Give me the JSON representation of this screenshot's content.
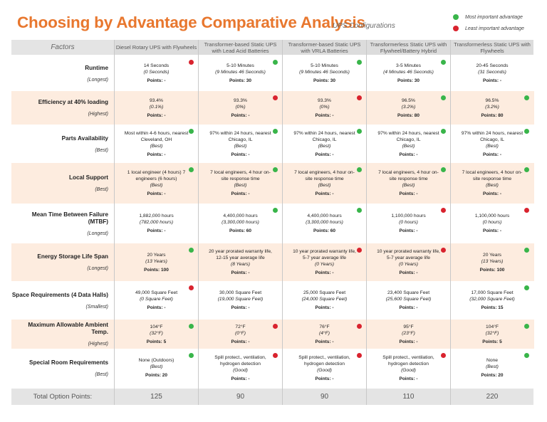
{
  "title": "Choosing by Advantage Comparative Analysis",
  "subtitle": "UPS Configurations",
  "legend": {
    "most": "Most important advantage",
    "least": "Least important advantage",
    "most_color": "#39b54a",
    "least_color": "#d9232e"
  },
  "factors_header": "Factors",
  "options": [
    "Diesel Rotary UPS with Flywheels",
    "Transformer-based Static UPS with Lead Acid Batteries",
    "Transformer-based Static UPS with VRLA Batteries",
    "Transformerless Static UPS with Flywheel/Battery Hybrid",
    "Transformerless Static UPS with Flywheels"
  ],
  "rows": [
    {
      "factor": "Runtime",
      "pref": "(Longest)",
      "cells": [
        {
          "value": "14 Seconds",
          "eq": "(0 Seconds)",
          "pts": "Points: -",
          "mark": "red"
        },
        {
          "value": "5-10 Minutes",
          "eq": "(9 Minutes 46 Seconds)",
          "pts": "Points: 30",
          "mark": "green"
        },
        {
          "value": "5-10 Minutes",
          "eq": "(9 Minutes 46 Seconds)",
          "pts": "Points: 30",
          "mark": "green"
        },
        {
          "value": "3-5 Minutes",
          "eq": "(4 Minutes 46 Seconds)",
          "pts": "Points: 30",
          "mark": "green"
        },
        {
          "value": "20-45 Seconds",
          "eq": "(31 Seconds)",
          "pts": "Points: -",
          "mark": ""
        }
      ]
    },
    {
      "factor": "Efficiency at 40% loading",
      "pref": "(Highest)",
      "cells": [
        {
          "value": "93.4%",
          "eq": "(0.1%)",
          "pts": "Points: -",
          "mark": ""
        },
        {
          "value": "93.3%",
          "eq": "(0%)",
          "pts": "Points: -",
          "mark": "red"
        },
        {
          "value": "93.3%",
          "eq": "(0%)",
          "pts": "Points: -",
          "mark": "red"
        },
        {
          "value": "96.5%",
          "eq": "(3.2%)",
          "pts": "Points: 80",
          "mark": "green"
        },
        {
          "value": "96.5%",
          "eq": "(3.2%)",
          "pts": "Points: 80",
          "mark": "green"
        }
      ]
    },
    {
      "factor": "Parts Availability",
      "pref": "(Best)",
      "cells": [
        {
          "value": "Most within 4-6 hours, nearest Cleveland, OH",
          "eq": "(Best)",
          "pts": "Points: -",
          "mark": "green"
        },
        {
          "value": "97% within 24 hours, nearest Chicago, IL",
          "eq": "(Best)",
          "pts": "Points: -",
          "mark": "green"
        },
        {
          "value": "97% within 24 hours, nearest Chicago, IL",
          "eq": "(Best)",
          "pts": "Points: -",
          "mark": "green"
        },
        {
          "value": "97% within 24 hours, nearest Chicago, IL",
          "eq": "(Best)",
          "pts": "Points: -",
          "mark": "green"
        },
        {
          "value": "97% within 24 hours, nearest Chicago, IL",
          "eq": "(Best)",
          "pts": "Points: -",
          "mark": "green"
        }
      ]
    },
    {
      "factor": "Local Support",
      "pref": "(Best)",
      "cells": [
        {
          "value": "1 local engineer (4 hours) 7 engineers (6 hours)",
          "eq": "(Best)",
          "pts": "Points: -",
          "mark": "green"
        },
        {
          "value": "7 local engineers, 4 hour on-site response time",
          "eq": "(Best)",
          "pts": "Points: -",
          "mark": "green"
        },
        {
          "value": "7 local engineers, 4 hour on-site response time",
          "eq": "(Best)",
          "pts": "Points: -",
          "mark": "green"
        },
        {
          "value": "7 local engineers, 4 hour on-site response time",
          "eq": "(Best)",
          "pts": "Points: -",
          "mark": "green"
        },
        {
          "value": "7 local engineers, 4 hour on-site response time",
          "eq": "(Best)",
          "pts": "Points: -",
          "mark": "green"
        }
      ]
    },
    {
      "factor": "Mean Time Between Failure (MTBF)",
      "pref": "(Longest)",
      "cells": [
        {
          "value": "1,882,000 hours",
          "eq": "(782,000 hours)",
          "pts": "Points: -",
          "mark": ""
        },
        {
          "value": "4,400,000 hours",
          "eq": "(3,300,000 hours)",
          "pts": "Points: 60",
          "mark": "green"
        },
        {
          "value": "4,400,000 hours",
          "eq": "(3,300,000 hours)",
          "pts": "Points: 60",
          "mark": "green"
        },
        {
          "value": "1,100,000 hours",
          "eq": "(0 hours)",
          "pts": "Points: -",
          "mark": "red"
        },
        {
          "value": "1,100,000 hours",
          "eq": "(0 hours)",
          "pts": "Points: -",
          "mark": "red"
        }
      ]
    },
    {
      "factor": "Energy Storage Life Span",
      "pref": "(Longest)",
      "cells": [
        {
          "value": "20 Years",
          "eq": "(13 Years)",
          "pts": "Points: 100",
          "mark": "green"
        },
        {
          "value": "20 year prorated warranty life, 12-15 year average life",
          "eq": "(8 Years)",
          "pts": "Points: -",
          "mark": ""
        },
        {
          "value": "10 year prorated warranty life, 5-7 year average life",
          "eq": "(0 Years)",
          "pts": "Points: -",
          "mark": "red"
        },
        {
          "value": "10 year prorated warranty life, 5-7 year average life",
          "eq": "(0 Years)",
          "pts": "Points: -",
          "mark": "red"
        },
        {
          "value": "20 Years",
          "eq": "(13 Years)",
          "pts": "Points: 100",
          "mark": "green"
        }
      ]
    },
    {
      "factor": "Space Requirements (4 Data Halls)",
      "pref": "(Smallest)",
      "cells": [
        {
          "value": "49,000 Square Feet",
          "eq": "(0 Square Feet)",
          "pts": "Points: -",
          "mark": "red"
        },
        {
          "value": "30,000 Square Feet",
          "eq": "(19,000 Square Feet)",
          "pts": "Points: -",
          "mark": ""
        },
        {
          "value": "25,000 Square Feet",
          "eq": "(24,000 Square Feet)",
          "pts": "Points: -",
          "mark": ""
        },
        {
          "value": "23,400 Square Feet",
          "eq": "(25,600 Square Feet)",
          "pts": "Points: -",
          "mark": ""
        },
        {
          "value": "17,000 Square Feet",
          "eq": "(32,000 Square Feet)",
          "pts": "Points: 15",
          "mark": "green"
        }
      ]
    },
    {
      "factor": "Maximum Allowable Ambient Temp.",
      "pref": "(Highest)",
      "cells": [
        {
          "value": "104°F",
          "eq": "(32°F)",
          "pts": "Points: 5",
          "mark": "green"
        },
        {
          "value": "72°F",
          "eq": "(0°F)",
          "pts": "Points: -",
          "mark": "red"
        },
        {
          "value": "76°F",
          "eq": "(4°F)",
          "pts": "Points: -",
          "mark": "red"
        },
        {
          "value": "95°F",
          "eq": "(23°F)",
          "pts": "Points: -",
          "mark": ""
        },
        {
          "value": "104°F",
          "eq": "(32°F)",
          "pts": "Points: 5",
          "mark": "green"
        }
      ]
    },
    {
      "factor": "Special Room Requirements",
      "pref": "(Best)",
      "cells": [
        {
          "value": "None (Outdoors)",
          "eq": "(Best)",
          "pts": "Points: 20",
          "mark": "green"
        },
        {
          "value": "Spill protect., ventilation, hydrogen detection",
          "eq": "(Good)",
          "pts": "Points: -",
          "mark": "red"
        },
        {
          "value": "Spill protect., ventilation, hydrogen detection",
          "eq": "(Good)",
          "pts": "Points: -",
          "mark": "red"
        },
        {
          "value": "Spill protect., ventilation, hydrogen detection",
          "eq": "(Good)",
          "pts": "Points: -",
          "mark": "red"
        },
        {
          "value": "None",
          "eq": "(Best)",
          "pts": "Points: 20",
          "mark": "green"
        }
      ]
    }
  ],
  "total_label": "Total Option Points:",
  "totals": [
    "125",
    "90",
    "90",
    "110",
    "220"
  ]
}
